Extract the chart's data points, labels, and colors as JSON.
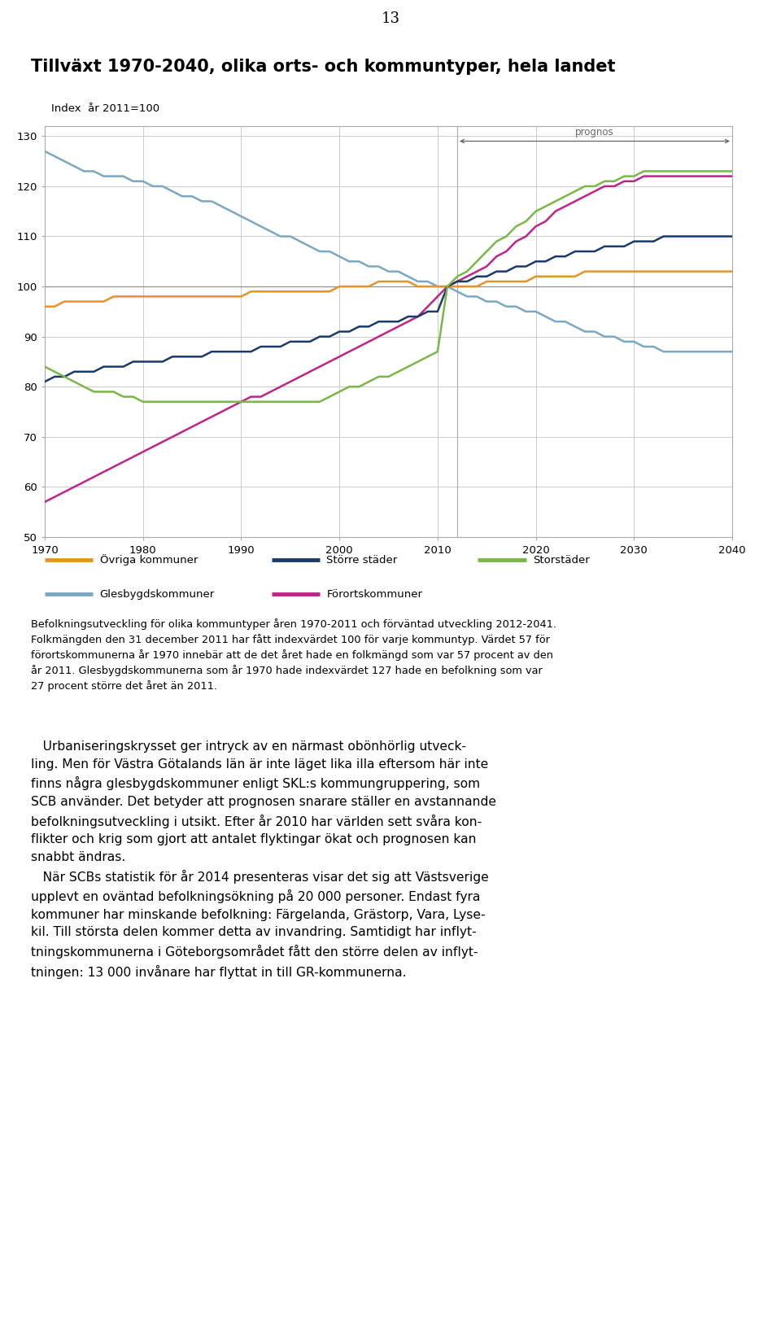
{
  "title": "Tillväxt 1970-2040, olika orts- och kommuntyper, hela landet",
  "ylabel": "Index  år 2011=100",
  "ylim": [
    50,
    132
  ],
  "yticks": [
    50,
    60,
    70,
    80,
    90,
    100,
    110,
    120,
    130
  ],
  "xlim": [
    1970,
    2040
  ],
  "xticks": [
    1970,
    1980,
    1990,
    2000,
    2010,
    2020,
    2030,
    2040
  ],
  "prognos_start": 2012,
  "background_color": "#ffffff",
  "chart_bg": "#ffffff",
  "grid_color": "#cccccc",
  "series": {
    "Glesbygdskommuner": {
      "color": "#7aa8c0",
      "years": [
        1970,
        1971,
        1972,
        1973,
        1974,
        1975,
        1976,
        1977,
        1978,
        1979,
        1980,
        1981,
        1982,
        1983,
        1984,
        1985,
        1986,
        1987,
        1988,
        1989,
        1990,
        1991,
        1992,
        1993,
        1994,
        1995,
        1996,
        1997,
        1998,
        1999,
        2000,
        2001,
        2002,
        2003,
        2004,
        2005,
        2006,
        2007,
        2008,
        2009,
        2010,
        2011,
        2012,
        2013,
        2014,
        2015,
        2016,
        2017,
        2018,
        2019,
        2020,
        2021,
        2022,
        2023,
        2024,
        2025,
        2026,
        2027,
        2028,
        2029,
        2030,
        2031,
        2032,
        2033,
        2034,
        2035,
        2036,
        2037,
        2038,
        2039,
        2040
      ],
      "values": [
        127,
        126,
        125,
        124,
        123,
        123,
        122,
        122,
        122,
        121,
        121,
        120,
        120,
        119,
        118,
        118,
        117,
        117,
        116,
        115,
        114,
        113,
        112,
        111,
        110,
        110,
        109,
        108,
        107,
        107,
        106,
        105,
        105,
        104,
        104,
        103,
        103,
        102,
        101,
        101,
        100,
        100,
        99,
        98,
        98,
        97,
        97,
        96,
        96,
        95,
        95,
        94,
        93,
        93,
        92,
        91,
        91,
        90,
        90,
        89,
        89,
        88,
        88,
        87,
        87,
        87,
        87,
        87,
        87,
        87,
        87
      ]
    },
    "Övriga kommuner": {
      "color": "#e8932a",
      "years": [
        1970,
        1971,
        1972,
        1973,
        1974,
        1975,
        1976,
        1977,
        1978,
        1979,
        1980,
        1981,
        1982,
        1983,
        1984,
        1985,
        1986,
        1987,
        1988,
        1989,
        1990,
        1991,
        1992,
        1993,
        1994,
        1995,
        1996,
        1997,
        1998,
        1999,
        2000,
        2001,
        2002,
        2003,
        2004,
        2005,
        2006,
        2007,
        2008,
        2009,
        2010,
        2011,
        2012,
        2013,
        2014,
        2015,
        2016,
        2017,
        2018,
        2019,
        2020,
        2021,
        2022,
        2023,
        2024,
        2025,
        2026,
        2027,
        2028,
        2029,
        2030,
        2031,
        2032,
        2033,
        2034,
        2035,
        2036,
        2037,
        2038,
        2039,
        2040
      ],
      "values": [
        96,
        96,
        97,
        97,
        97,
        97,
        97,
        98,
        98,
        98,
        98,
        98,
        98,
        98,
        98,
        98,
        98,
        98,
        98,
        98,
        98,
        99,
        99,
        99,
        99,
        99,
        99,
        99,
        99,
        99,
        100,
        100,
        100,
        100,
        101,
        101,
        101,
        101,
        100,
        100,
        100,
        100,
        100,
        100,
        100,
        101,
        101,
        101,
        101,
        101,
        102,
        102,
        102,
        102,
        102,
        103,
        103,
        103,
        103,
        103,
        103,
        103,
        103,
        103,
        103,
        103,
        103,
        103,
        103,
        103,
        103
      ]
    },
    "Större städer": {
      "color": "#1a3a6b",
      "years": [
        1970,
        1971,
        1972,
        1973,
        1974,
        1975,
        1976,
        1977,
        1978,
        1979,
        1980,
        1981,
        1982,
        1983,
        1984,
        1985,
        1986,
        1987,
        1988,
        1989,
        1990,
        1991,
        1992,
        1993,
        1994,
        1995,
        1996,
        1997,
        1998,
        1999,
        2000,
        2001,
        2002,
        2003,
        2004,
        2005,
        2006,
        2007,
        2008,
        2009,
        2010,
        2011,
        2012,
        2013,
        2014,
        2015,
        2016,
        2017,
        2018,
        2019,
        2020,
        2021,
        2022,
        2023,
        2024,
        2025,
        2026,
        2027,
        2028,
        2029,
        2030,
        2031,
        2032,
        2033,
        2034,
        2035,
        2036,
        2037,
        2038,
        2039,
        2040
      ],
      "values": [
        81,
        82,
        82,
        83,
        83,
        83,
        84,
        84,
        84,
        85,
        85,
        85,
        85,
        86,
        86,
        86,
        86,
        87,
        87,
        87,
        87,
        87,
        88,
        88,
        88,
        89,
        89,
        89,
        90,
        90,
        91,
        91,
        92,
        92,
        93,
        93,
        93,
        94,
        94,
        95,
        95,
        100,
        101,
        101,
        102,
        102,
        103,
        103,
        104,
        104,
        105,
        105,
        106,
        106,
        107,
        107,
        107,
        108,
        108,
        108,
        109,
        109,
        109,
        110,
        110,
        110,
        110,
        110,
        110,
        110,
        110
      ]
    },
    "Förortskommuner": {
      "color": "#c0238a",
      "years": [
        1970,
        1971,
        1972,
        1973,
        1974,
        1975,
        1976,
        1977,
        1978,
        1979,
        1980,
        1981,
        1982,
        1983,
        1984,
        1985,
        1986,
        1987,
        1988,
        1989,
        1990,
        1991,
        1992,
        1993,
        1994,
        1995,
        1996,
        1997,
        1998,
        1999,
        2000,
        2001,
        2002,
        2003,
        2004,
        2005,
        2006,
        2007,
        2008,
        2009,
        2010,
        2011,
        2012,
        2013,
        2014,
        2015,
        2016,
        2017,
        2018,
        2019,
        2020,
        2021,
        2022,
        2023,
        2024,
        2025,
        2026,
        2027,
        2028,
        2029,
        2030,
        2031,
        2032,
        2033,
        2034,
        2035,
        2036,
        2037,
        2038,
        2039,
        2040
      ],
      "values": [
        57,
        58,
        59,
        60,
        61,
        62,
        63,
        64,
        65,
        66,
        67,
        68,
        69,
        70,
        71,
        72,
        73,
        74,
        75,
        76,
        77,
        78,
        78,
        79,
        80,
        81,
        82,
        83,
        84,
        85,
        86,
        87,
        88,
        89,
        90,
        91,
        92,
        93,
        94,
        96,
        98,
        100,
        101,
        102,
        103,
        104,
        106,
        107,
        109,
        110,
        112,
        113,
        115,
        116,
        117,
        118,
        119,
        120,
        120,
        121,
        121,
        122,
        122,
        122,
        122,
        122,
        122,
        122,
        122,
        122,
        122
      ]
    },
    "Storstäder": {
      "color": "#7ab648",
      "years": [
        1970,
        1971,
        1972,
        1973,
        1974,
        1975,
        1976,
        1977,
        1978,
        1979,
        1980,
        1981,
        1982,
        1983,
        1984,
        1985,
        1986,
        1987,
        1988,
        1989,
        1990,
        1991,
        1992,
        1993,
        1994,
        1995,
        1996,
        1997,
        1998,
        1999,
        2000,
        2001,
        2002,
        2003,
        2004,
        2005,
        2006,
        2007,
        2008,
        2009,
        2010,
        2011,
        2012,
        2013,
        2014,
        2015,
        2016,
        2017,
        2018,
        2019,
        2020,
        2021,
        2022,
        2023,
        2024,
        2025,
        2026,
        2027,
        2028,
        2029,
        2030,
        2031,
        2032,
        2033,
        2034,
        2035,
        2036,
        2037,
        2038,
        2039,
        2040
      ],
      "values": [
        84,
        83,
        82,
        81,
        80,
        79,
        79,
        79,
        78,
        78,
        77,
        77,
        77,
        77,
        77,
        77,
        77,
        77,
        77,
        77,
        77,
        77,
        77,
        77,
        77,
        77,
        77,
        77,
        77,
        78,
        79,
        80,
        80,
        81,
        82,
        82,
        83,
        84,
        85,
        86,
        87,
        100,
        102,
        103,
        105,
        107,
        109,
        110,
        112,
        113,
        115,
        116,
        117,
        118,
        119,
        120,
        120,
        121,
        121,
        122,
        122,
        123,
        123,
        123,
        123,
        123,
        123,
        123,
        123,
        123,
        123
      ]
    }
  },
  "legend_row1": [
    {
      "label": "Övriga kommuner",
      "color": "#e8932a"
    },
    {
      "label": "Större städer",
      "color": "#1a3a6b"
    },
    {
      "label": "Storstäder",
      "color": "#7ab648"
    }
  ],
  "legend_row2": [
    {
      "label": "Glesbygdskommuner",
      "color": "#7aa8c0"
    },
    {
      "label": "Förortskommuner",
      "color": "#c0238a"
    }
  ],
  "intro_text": "Befolkningsutveckling för olika kommuntyper åren 1970-2011 och förväntad utveckling 2012-2041.\nFolkmängden den 31 december 2011 har fått indexvärdet 100 för varje kommuntyp. Värdet 57 för\nförortskommunerna år 1970 innebär att de det året hade en folkmängd som var 57 procent av den\når 2011. Glesbygdskommunerna som år 1970 hade indexvärdet 127 hade en befolkning som var\n27 procent större det året än 2011.",
  "main_text_lines": [
    "   Urbaniseringskrysset ger intryck av en närmast obönhörlig utveck-",
    "ling. Men för Västra Götalands län är inte läget lika illa eftersom här inte",
    "finns några glesbygdskommuner enligt SKL:s kommungruppering, som",
    "SCB använder. Det betyder att prognosen snarare ställer en avstannande",
    "befolkningsutveckling i utsikt. Efter år 2010 har världen sett svåra kon-",
    "flikter och krig som gjort att antalet flyktingar ökat och prognosen kan",
    "snabbt ändras.",
    "   När SCBs statistik för år 2014 presenteras visar det sig att Västsverige",
    "upplevt en oväntad befolkningsökning på 20 000 personer. Endast fyra",
    "kommuner har minskande befolkning: Färgelanda, Grästorp, Vara, Lyse-",
    "kil. Till största delen kommer detta av invandring. Samtidigt har inflyt-",
    "tningskommunerna i Göteborgsområdet fått den större delen av inflyt-",
    "tningen: 13 000 invånare har flyttat in till GR-kommunerna."
  ],
  "page_number": "13"
}
